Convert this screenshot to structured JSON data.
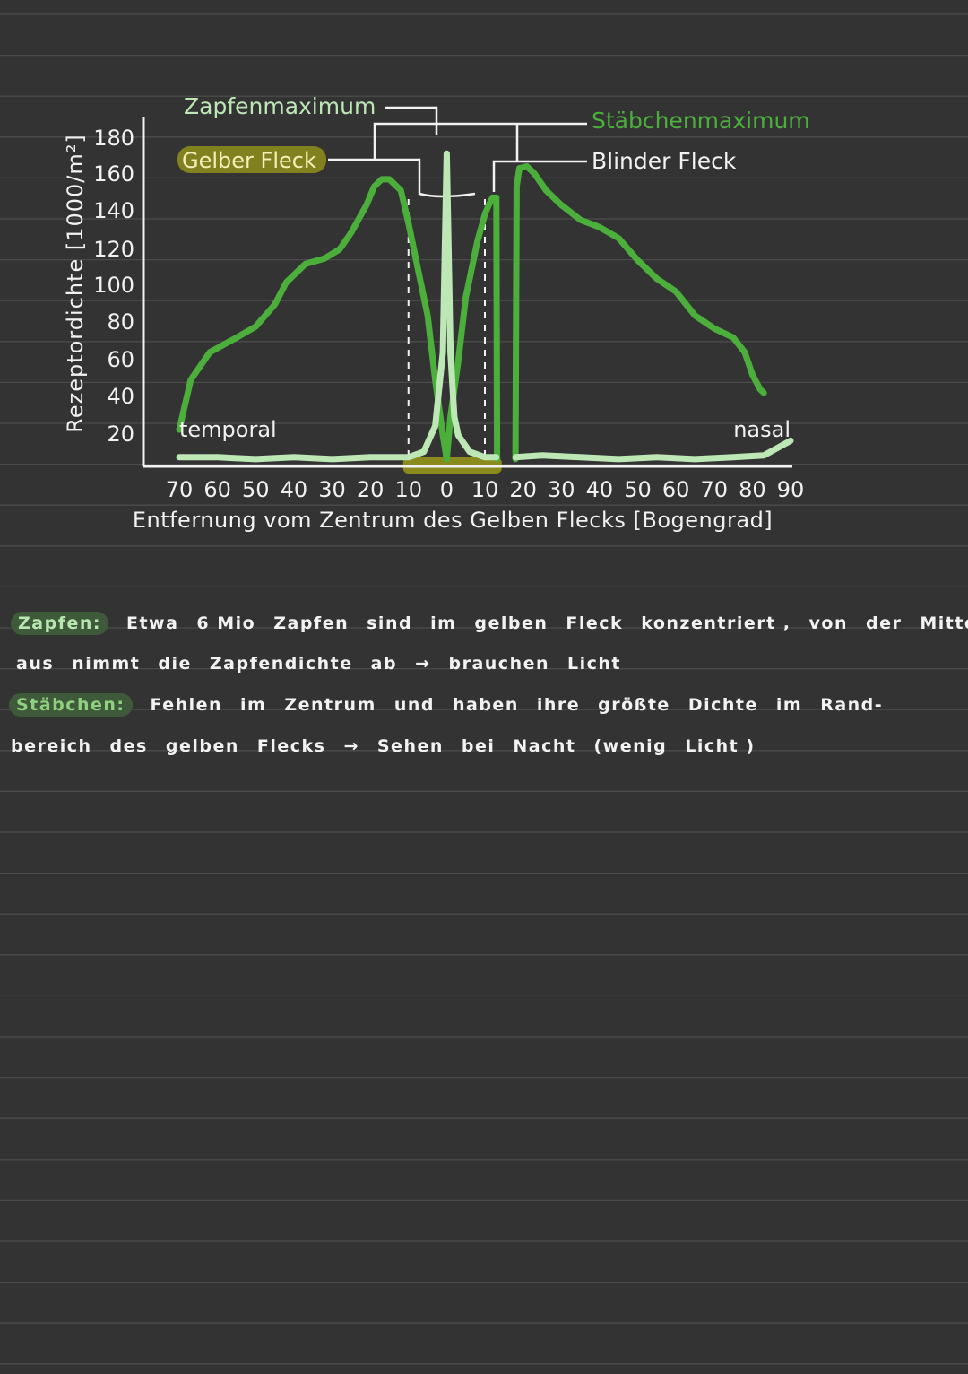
{
  "chart_data": {
    "type": "line",
    "xlabel": "Entfernung vom Zentrum des Gelben Flecks [Bogengrad]",
    "ylabel": "Rezeptordichte [1000/m²]",
    "x_tick_labels": [
      "70",
      "60",
      "50",
      "40",
      "30",
      "20",
      "10",
      "0",
      "10",
      "20",
      "30",
      "40",
      "50",
      "60",
      "70",
      "80",
      "90"
    ],
    "x_tick_values": [
      -70,
      -60,
      -50,
      -40,
      -30,
      -20,
      -10,
      0,
      10,
      20,
      30,
      40,
      50,
      60,
      70,
      80,
      90
    ],
    "y_ticks": [
      20,
      40,
      60,
      80,
      100,
      120,
      140,
      160,
      180
    ],
    "xlim": [
      -75,
      95
    ],
    "ylim": [
      0,
      190
    ],
    "side_labels": {
      "left": "temporal",
      "right": "nasal"
    },
    "annotations": {
      "cone_max": "Zapfenmaximum",
      "rod_max": "Stäbchenmaximum",
      "yellow_spot": "Gelber Fleck",
      "blind_spot": "Blinder Fleck"
    },
    "series": [
      {
        "name": "Stäbchen",
        "color": "#4caf3c",
        "segments": [
          {
            "x": [
              -70,
              -67,
              -62,
              -55,
              -50,
              -45,
              -42,
              -37,
              -32,
              -28,
              -25,
              -21,
              -19,
              -17,
              -15,
              -12,
              -10,
              -8,
              -5,
              -3,
              -1,
              0
            ],
            "y": [
              18,
              45,
              60,
              68,
              74,
              86,
              98,
              108,
              111,
              116,
              125,
              140,
              150,
              154,
              154,
              148,
              130,
              110,
              80,
              45,
              15,
              2
            ]
          },
          {
            "x": [
              0,
              1,
              3,
              5,
              8,
              10,
              11,
              12,
              13
            ],
            "y": [
              2,
              25,
              55,
              90,
              120,
              135,
              140,
              144,
              144
            ]
          },
          {
            "x": [
              13,
              13.2
            ],
            "y": [
              144,
              2
            ]
          },
          {
            "x": [
              18,
              18.3,
              19,
              21,
              23,
              26,
              30,
              35,
              40,
              45,
              50,
              55,
              60,
              65,
              70,
              75,
              78,
              80,
              82,
              83
            ],
            "y": [
              2,
              150,
              160,
              161,
              157,
              148,
              140,
              132,
              128,
              122,
              110,
              100,
              93,
              80,
              73,
              68,
              60,
              48,
              40,
              38
            ]
          }
        ]
      },
      {
        "name": "Zapfen",
        "color": "#bde8b5",
        "segments": [
          {
            "x": [
              -70,
              -60,
              -50,
              -40,
              -30,
              -20,
              -15,
              -10,
              -6,
              -3,
              -1,
              0,
              1,
              2,
              3,
              6,
              10,
              13
            ],
            "y": [
              3,
              3,
              2,
              3,
              2,
              3,
              3,
              3,
              6,
              20,
              60,
              168,
              60,
              25,
              15,
              6,
              3,
              3
            ]
          },
          {
            "x": [
              18,
              25,
              35,
              45,
              55,
              65,
              75,
              83,
              90
            ],
            "y": [
              3,
              4,
              3,
              2,
              3,
              2,
              3,
              4,
              12
            ]
          }
        ]
      }
    ],
    "colors": {
      "rods": "#4caf3c",
      "cones": "#bde8b5",
      "yellow_spot": "#8a8a1e",
      "axis": "#f2f2f2"
    }
  },
  "notes": {
    "line1": {
      "tag": "Zapfen:",
      "words": [
        "Etwa",
        "6 Mio",
        "Zapfen",
        "sind",
        "im",
        "gelben",
        "Fleck",
        "konzentriert ,",
        "von",
        "der",
        "Mitte"
      ]
    },
    "line2": {
      "words": [
        "aus",
        "nimmt",
        "die",
        "Zapfendichte",
        "ab",
        "→",
        "brauchen",
        "Licht"
      ]
    },
    "line3": {
      "tag": "Stäbchen:",
      "words": [
        "Fehlen",
        "im",
        "Zentrum",
        "und",
        "haben",
        "ihre",
        "größte",
        "Dichte",
        "im",
        "Rand-"
      ]
    },
    "line4": {
      "words": [
        "bereich",
        "des",
        "gelben",
        "Flecks",
        "→",
        "Sehen",
        "bei",
        "Nacht",
        "(wenig",
        "Licht )"
      ]
    }
  }
}
